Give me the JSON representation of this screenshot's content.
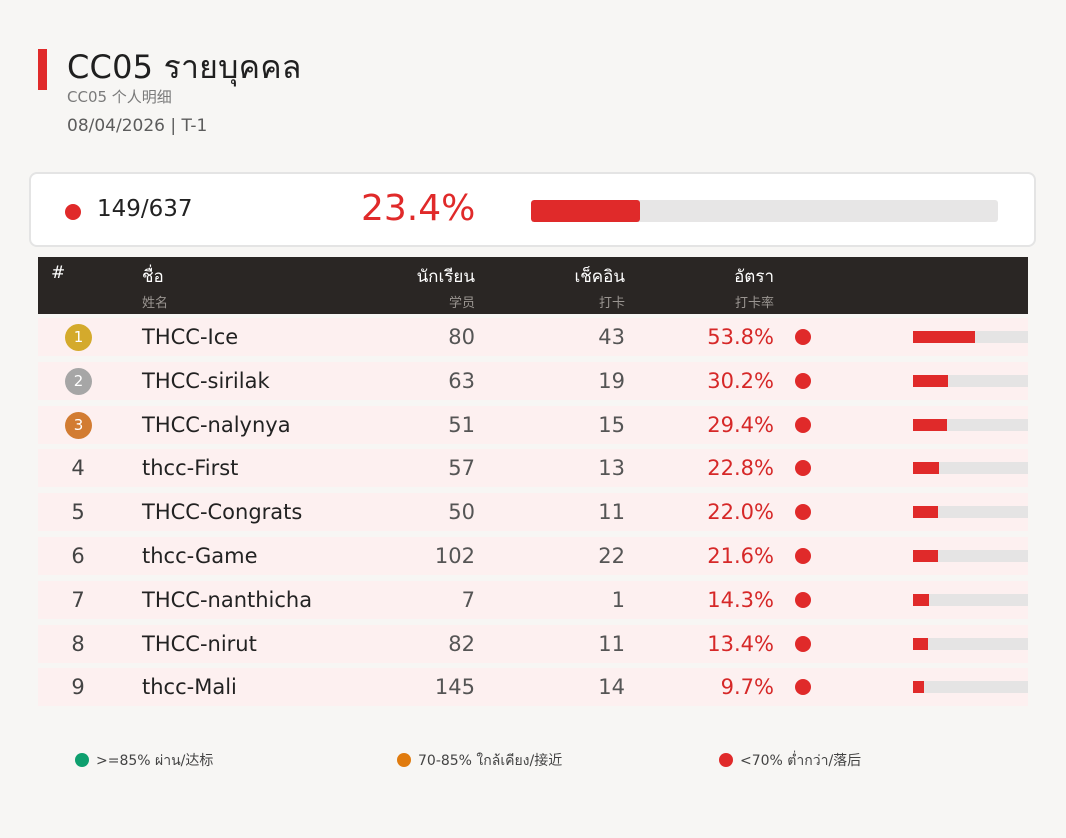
{
  "header": {
    "title": "CC05  รายบุคคล",
    "subtitle": "CC05  个人明细",
    "dateline": "08/04/2026  |  T-1"
  },
  "summary": {
    "count": "149/637",
    "percent_text": "23.4%",
    "progress": 0.234,
    "status_color": "#e02a2a"
  },
  "table": {
    "columns": [
      {
        "th": "#",
        "zh": ""
      },
      {
        "th": "ชื่อ",
        "zh": "姓名"
      },
      {
        "th": "นักเรียน",
        "zh": "学员"
      },
      {
        "th": "เช็คอิน",
        "zh": "打卡"
      },
      {
        "th": "อัตรา",
        "zh": "打卡率"
      }
    ],
    "rows": [
      {
        "rank": "1",
        "medal": "gold",
        "name": "THCC-Ice",
        "students": "80",
        "checkins": "43",
        "rate": "53.8%",
        "rate_value": 0.538
      },
      {
        "rank": "2",
        "medal": "silver",
        "name": "THCC-sirilak",
        "students": "63",
        "checkins": "19",
        "rate": "30.2%",
        "rate_value": 0.302
      },
      {
        "rank": "3",
        "medal": "bronze",
        "name": "THCC-nalynya",
        "students": "51",
        "checkins": "15",
        "rate": "29.4%",
        "rate_value": 0.294
      },
      {
        "rank": "4",
        "medal": "",
        "name": "thcc-First",
        "students": "57",
        "checkins": "13",
        "rate": "22.8%",
        "rate_value": 0.228
      },
      {
        "rank": "5",
        "medal": "",
        "name": "THCC-Congrats",
        "students": "50",
        "checkins": "11",
        "rate": "22.0%",
        "rate_value": 0.22
      },
      {
        "rank": "6",
        "medal": "",
        "name": "thcc-Game",
        "students": "102",
        "checkins": "22",
        "rate": "21.6%",
        "rate_value": 0.216
      },
      {
        "rank": "7",
        "medal": "",
        "name": "THCC-nanthicha",
        "students": "7",
        "checkins": "1",
        "rate": "14.3%",
        "rate_value": 0.143
      },
      {
        "rank": "8",
        "medal": "",
        "name": "THCC-nirut",
        "students": "82",
        "checkins": "11",
        "rate": "13.4%",
        "rate_value": 0.134
      },
      {
        "rank": "9",
        "medal": "",
        "name": "thcc-Mali",
        "students": "145",
        "checkins": "14",
        "rate": "9.7%",
        "rate_value": 0.097
      }
    ]
  },
  "legend": [
    {
      "label": ">=85% ผ่าน/达标",
      "color": "#0e9f6e"
    },
    {
      "label": "70-85% ใกล้เคียง/接近",
      "color": "#e07b0e"
    },
    {
      "label": "<70% ต่ำกว่า/落后",
      "color": "#e02a2a"
    }
  ],
  "colors": {
    "accent": "#e02a2a",
    "medal_gold": "#d4aa2c",
    "medal_silver": "#a6a6a6",
    "medal_bronze": "#d27c32",
    "header_bg": "#2a2624",
    "row_bg": "#fdf0f0"
  }
}
